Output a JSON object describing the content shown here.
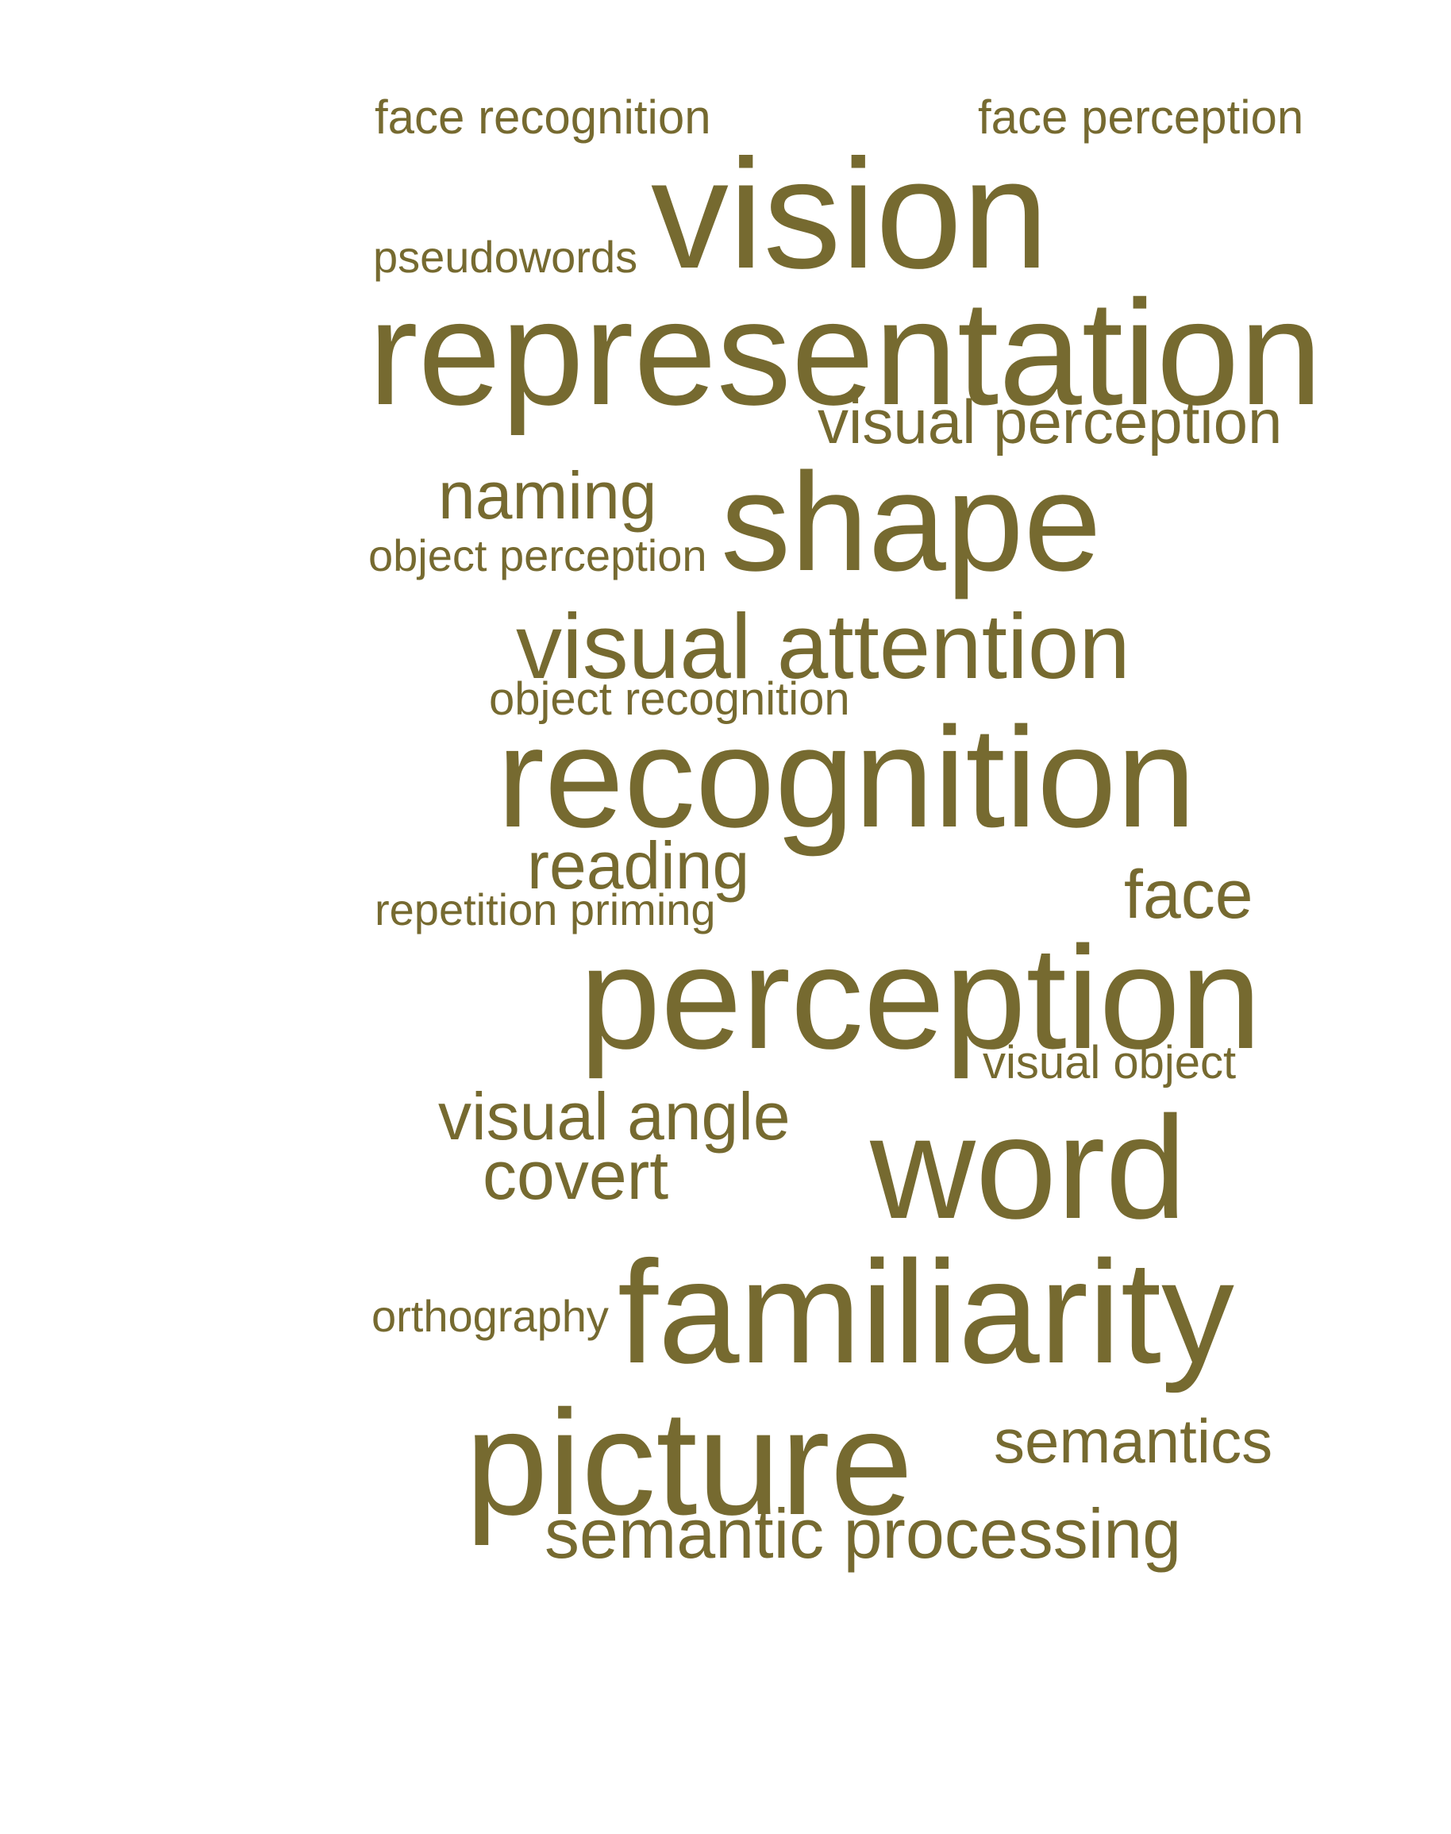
{
  "color": "#766a30",
  "background": "#ffffff",
  "words": {
    "face_recognition": "face recognition",
    "face_perception": "face perception",
    "vision": "vision",
    "pseudowords": "pseudowords",
    "representation": "representation",
    "visual_perception": "visual perception",
    "naming": "naming",
    "object_perception": "object perception",
    "shape": "shape",
    "visual_attention": "visual attention",
    "object_recognition": "object recognition",
    "recognition": "recognition",
    "reading": "reading",
    "repetition_priming": "repetition priming",
    "face": "face",
    "perception": "perception",
    "visual_object": "visual object",
    "visual_angle": "visual angle",
    "covert": "covert",
    "word": "word",
    "orthography": "orthography",
    "familiarity": "familiarity",
    "picture": "picture",
    "semantics": "semantics",
    "semantic_processing": "semantic processing"
  }
}
